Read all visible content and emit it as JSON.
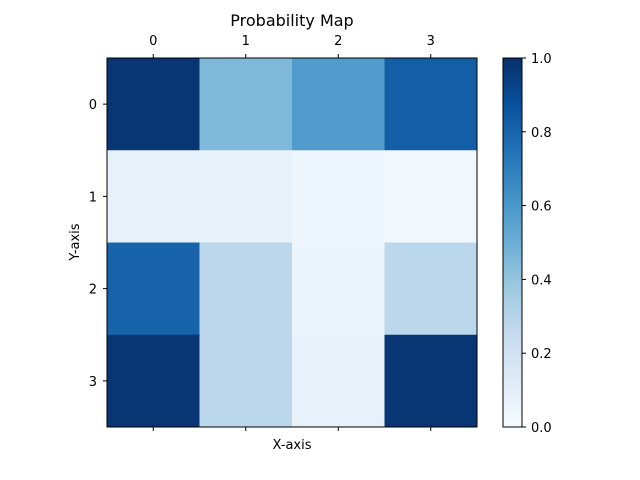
{
  "chart_data": {
    "type": "heatmap",
    "title": "Probability Map",
    "xlabel": "X-axis",
    "ylabel": "Y-axis",
    "x_categories": [
      "0",
      "1",
      "2",
      "3"
    ],
    "y_categories": [
      "0",
      "1",
      "2",
      "3"
    ],
    "values": [
      [
        0.98,
        0.45,
        0.58,
        0.82
      ],
      [
        0.08,
        0.08,
        0.05,
        0.03
      ],
      [
        0.8,
        0.28,
        0.06,
        0.28
      ],
      [
        0.98,
        0.28,
        0.08,
        0.98
      ]
    ],
    "colormap": "Blues",
    "color_range": [
      0.0,
      1.0
    ],
    "colorbar_ticks": [
      "0.0",
      "0.2",
      "0.4",
      "0.6",
      "0.8",
      "1.0"
    ],
    "x_tick_position": "top",
    "grid": false
  }
}
